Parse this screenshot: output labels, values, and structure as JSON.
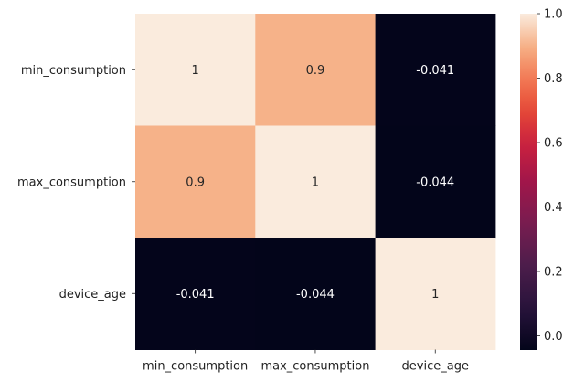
{
  "chart_data": {
    "type": "heatmap",
    "title": "",
    "xlabel": "",
    "ylabel": "",
    "row_labels": [
      "min_consumption",
      "max_consumption",
      "device_age"
    ],
    "col_labels": [
      "min_consumption",
      "max_consumption",
      "device_age"
    ],
    "values": [
      [
        1,
        0.9,
        -0.041
      ],
      [
        0.9,
        1,
        -0.044
      ],
      [
        -0.041,
        -0.044,
        1
      ]
    ],
    "annotations": [
      [
        "1",
        "0.9",
        "-0.041"
      ],
      [
        "0.9",
        "1",
        "-0.044"
      ],
      [
        "-0.041",
        "-0.044",
        "1"
      ]
    ],
    "colorbar": {
      "range": [
        -0.044,
        1.0
      ],
      "ticks": [
        0.0,
        0.2,
        0.4,
        0.6,
        0.8,
        1.0
      ],
      "tick_labels": [
        "0.0",
        "0.2",
        "0.4",
        "0.6",
        "0.8",
        "1.0"
      ],
      "colormap": "rocket"
    }
  }
}
